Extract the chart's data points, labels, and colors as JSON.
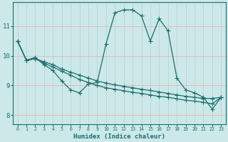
{
  "xlabel": "Humidex (Indice chaleur)",
  "bg_color": "#cce8e8",
  "line_color": "#1a6e6e",
  "hgrid_color": "#e8b8b8",
  "vgrid_color": "#b8d8d8",
  "xlim": [
    -0.5,
    23.5
  ],
  "ylim": [
    7.7,
    11.8
  ],
  "xticks": [
    0,
    1,
    2,
    3,
    4,
    5,
    6,
    7,
    8,
    9,
    10,
    11,
    12,
    13,
    14,
    15,
    16,
    17,
    18,
    19,
    20,
    21,
    22,
    23
  ],
  "yticks": [
    8,
    9,
    10,
    11
  ],
  "series1": [
    10.5,
    9.85,
    9.95,
    9.7,
    9.5,
    9.15,
    8.85,
    8.75,
    9.05,
    9.1,
    10.4,
    11.45,
    11.55,
    11.55,
    11.35,
    10.5,
    11.25,
    10.85,
    9.25,
    8.85,
    8.75,
    8.6,
    8.2,
    8.6
  ],
  "series2": [
    10.5,
    9.85,
    9.9,
    9.8,
    9.7,
    9.55,
    9.45,
    9.35,
    9.25,
    9.15,
    9.08,
    9.02,
    8.97,
    8.92,
    8.87,
    8.83,
    8.78,
    8.73,
    8.68,
    8.63,
    8.6,
    8.56,
    8.56,
    8.6
  ],
  "series3": [
    10.5,
    9.85,
    9.9,
    9.75,
    9.62,
    9.48,
    9.35,
    9.2,
    9.1,
    9.0,
    8.92,
    8.87,
    8.82,
    8.77,
    8.73,
    8.68,
    8.63,
    8.6,
    8.55,
    8.5,
    8.47,
    8.43,
    8.38,
    8.6
  ]
}
